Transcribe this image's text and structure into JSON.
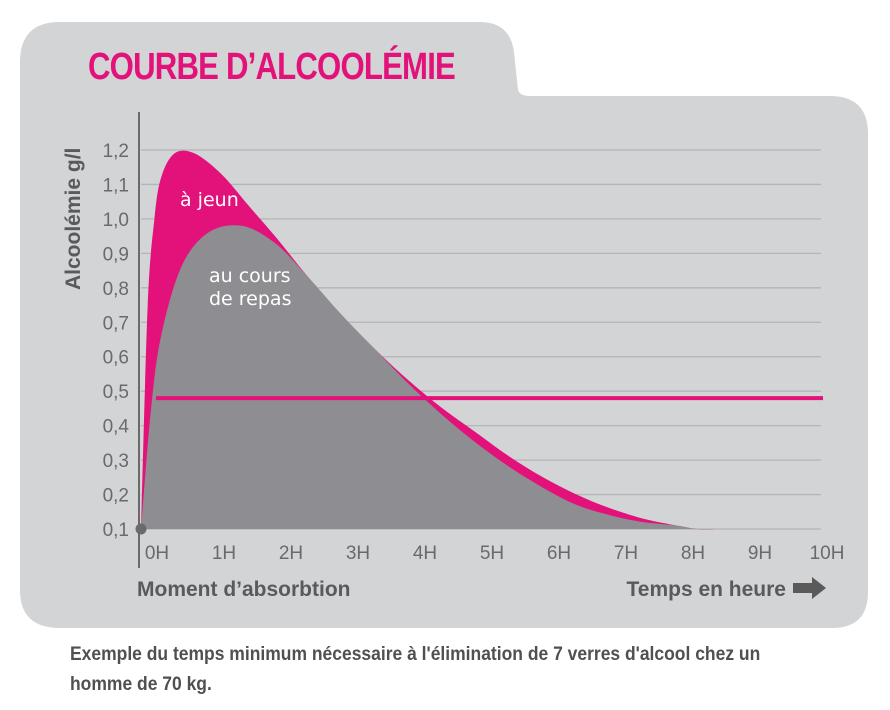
{
  "chart_data": {
    "type": "area",
    "title": "COURBE D’ALCOOLÉMIE",
    "ylabel": "Alcoolémie g/l",
    "xlabel_left": "Moment d’absorbtion",
    "xlabel_right": "Temps en heure",
    "ylim": [
      0.1,
      1.2
    ],
    "xlim": [
      0,
      10
    ],
    "y_ticks": [
      "0,1",
      "0,2",
      "0,3",
      "0,4",
      "0,5",
      "0,6",
      "0,7",
      "0,8",
      "0,9",
      "1,0",
      "1,1",
      "1,2"
    ],
    "x_ticks": [
      "0H",
      "1H",
      "2H",
      "3H",
      "4H",
      "5H",
      "6H",
      "7H",
      "8H",
      "9H",
      "10H"
    ],
    "threshold": 0.48,
    "grid": true,
    "series": [
      {
        "name": "à jeun",
        "color": "#e3127a",
        "x": [
          0,
          0.1,
          0.2,
          0.3,
          0.5,
          0.8,
          1.2,
          1.6,
          2,
          2.5,
          3,
          3.5,
          4,
          4.5,
          5,
          5.5,
          6,
          6.5,
          7,
          7.5,
          8,
          8.3,
          8.6
        ],
        "y": [
          0.1,
          0.75,
          1.0,
          1.12,
          1.19,
          1.19,
          1.13,
          1.04,
          0.95,
          0.83,
          0.72,
          0.62,
          0.53,
          0.45,
          0.38,
          0.31,
          0.25,
          0.2,
          0.16,
          0.13,
          0.11,
          0.1,
          0.1
        ]
      },
      {
        "name": "au cours de repas",
        "color": "#8d8d92",
        "x": [
          0,
          0.15,
          0.3,
          0.6,
          1.0,
          1.5,
          2,
          2.5,
          3,
          3.5,
          4,
          4.5,
          5,
          5.5,
          6,
          6.5,
          7,
          7.5,
          8,
          8.3,
          8.6
        ],
        "y": [
          0.1,
          0.45,
          0.66,
          0.86,
          0.96,
          0.98,
          0.93,
          0.83,
          0.72,
          0.62,
          0.52,
          0.43,
          0.35,
          0.28,
          0.22,
          0.17,
          0.14,
          0.12,
          0.11,
          0.1,
          0.1
        ]
      }
    ]
  },
  "caption": "Exemple du temps minimum nécessaire à l'élimination de 7 verres d'alcool chez un homme de 70 kg.",
  "colors": {
    "accent": "#e3127a",
    "panel": "#d3d4d6",
    "curve_gray": "#8d8d92",
    "grid": "#b4b5b8",
    "text": "#505050"
  }
}
